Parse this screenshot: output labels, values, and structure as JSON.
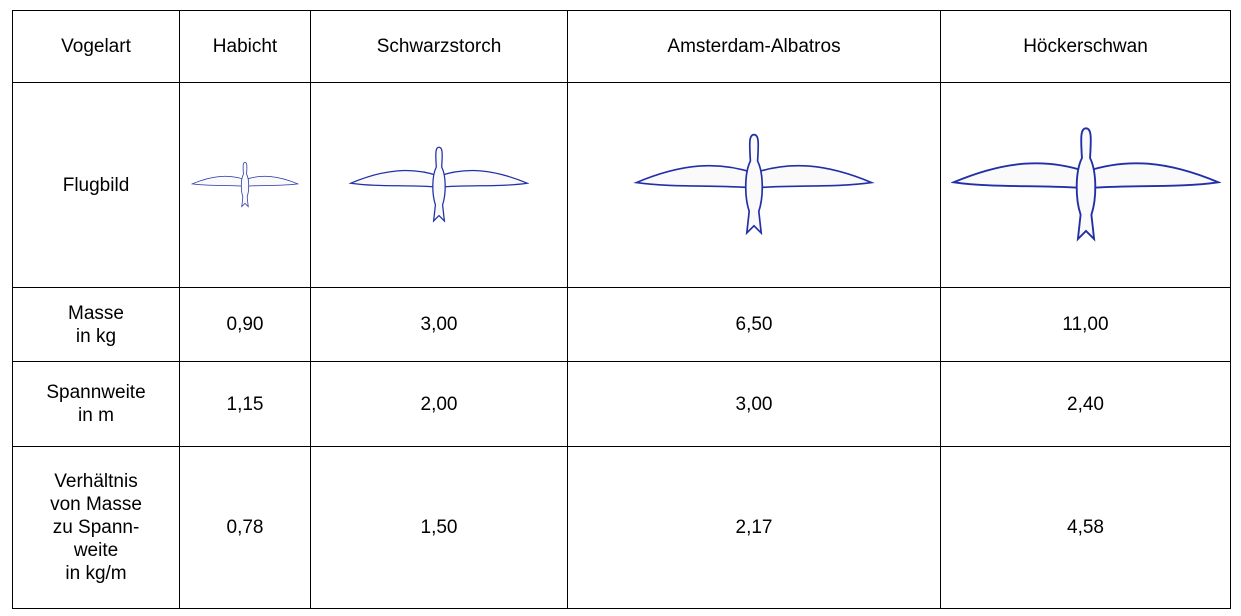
{
  "table": {
    "header": [
      "Vogelart",
      "Habicht",
      "Schwarzstorch",
      "Amsterdam-Albatros",
      "Höckerschwan"
    ],
    "rows": [
      [
        "Flugbild"
      ],
      [
        "Masse\nin kg",
        "0,90",
        "3,00",
        "6,50",
        "11,00"
      ],
      [
        "Spannweite\nin m",
        "1,15",
        "2,00",
        "3,00",
        "2,40"
      ],
      [
        "Verhältnis\nvon Masse\nzu Spann-\nweite\nin kg/m",
        "0,78",
        "1,50",
        "2,17",
        "4,58"
      ]
    ]
  }
}
